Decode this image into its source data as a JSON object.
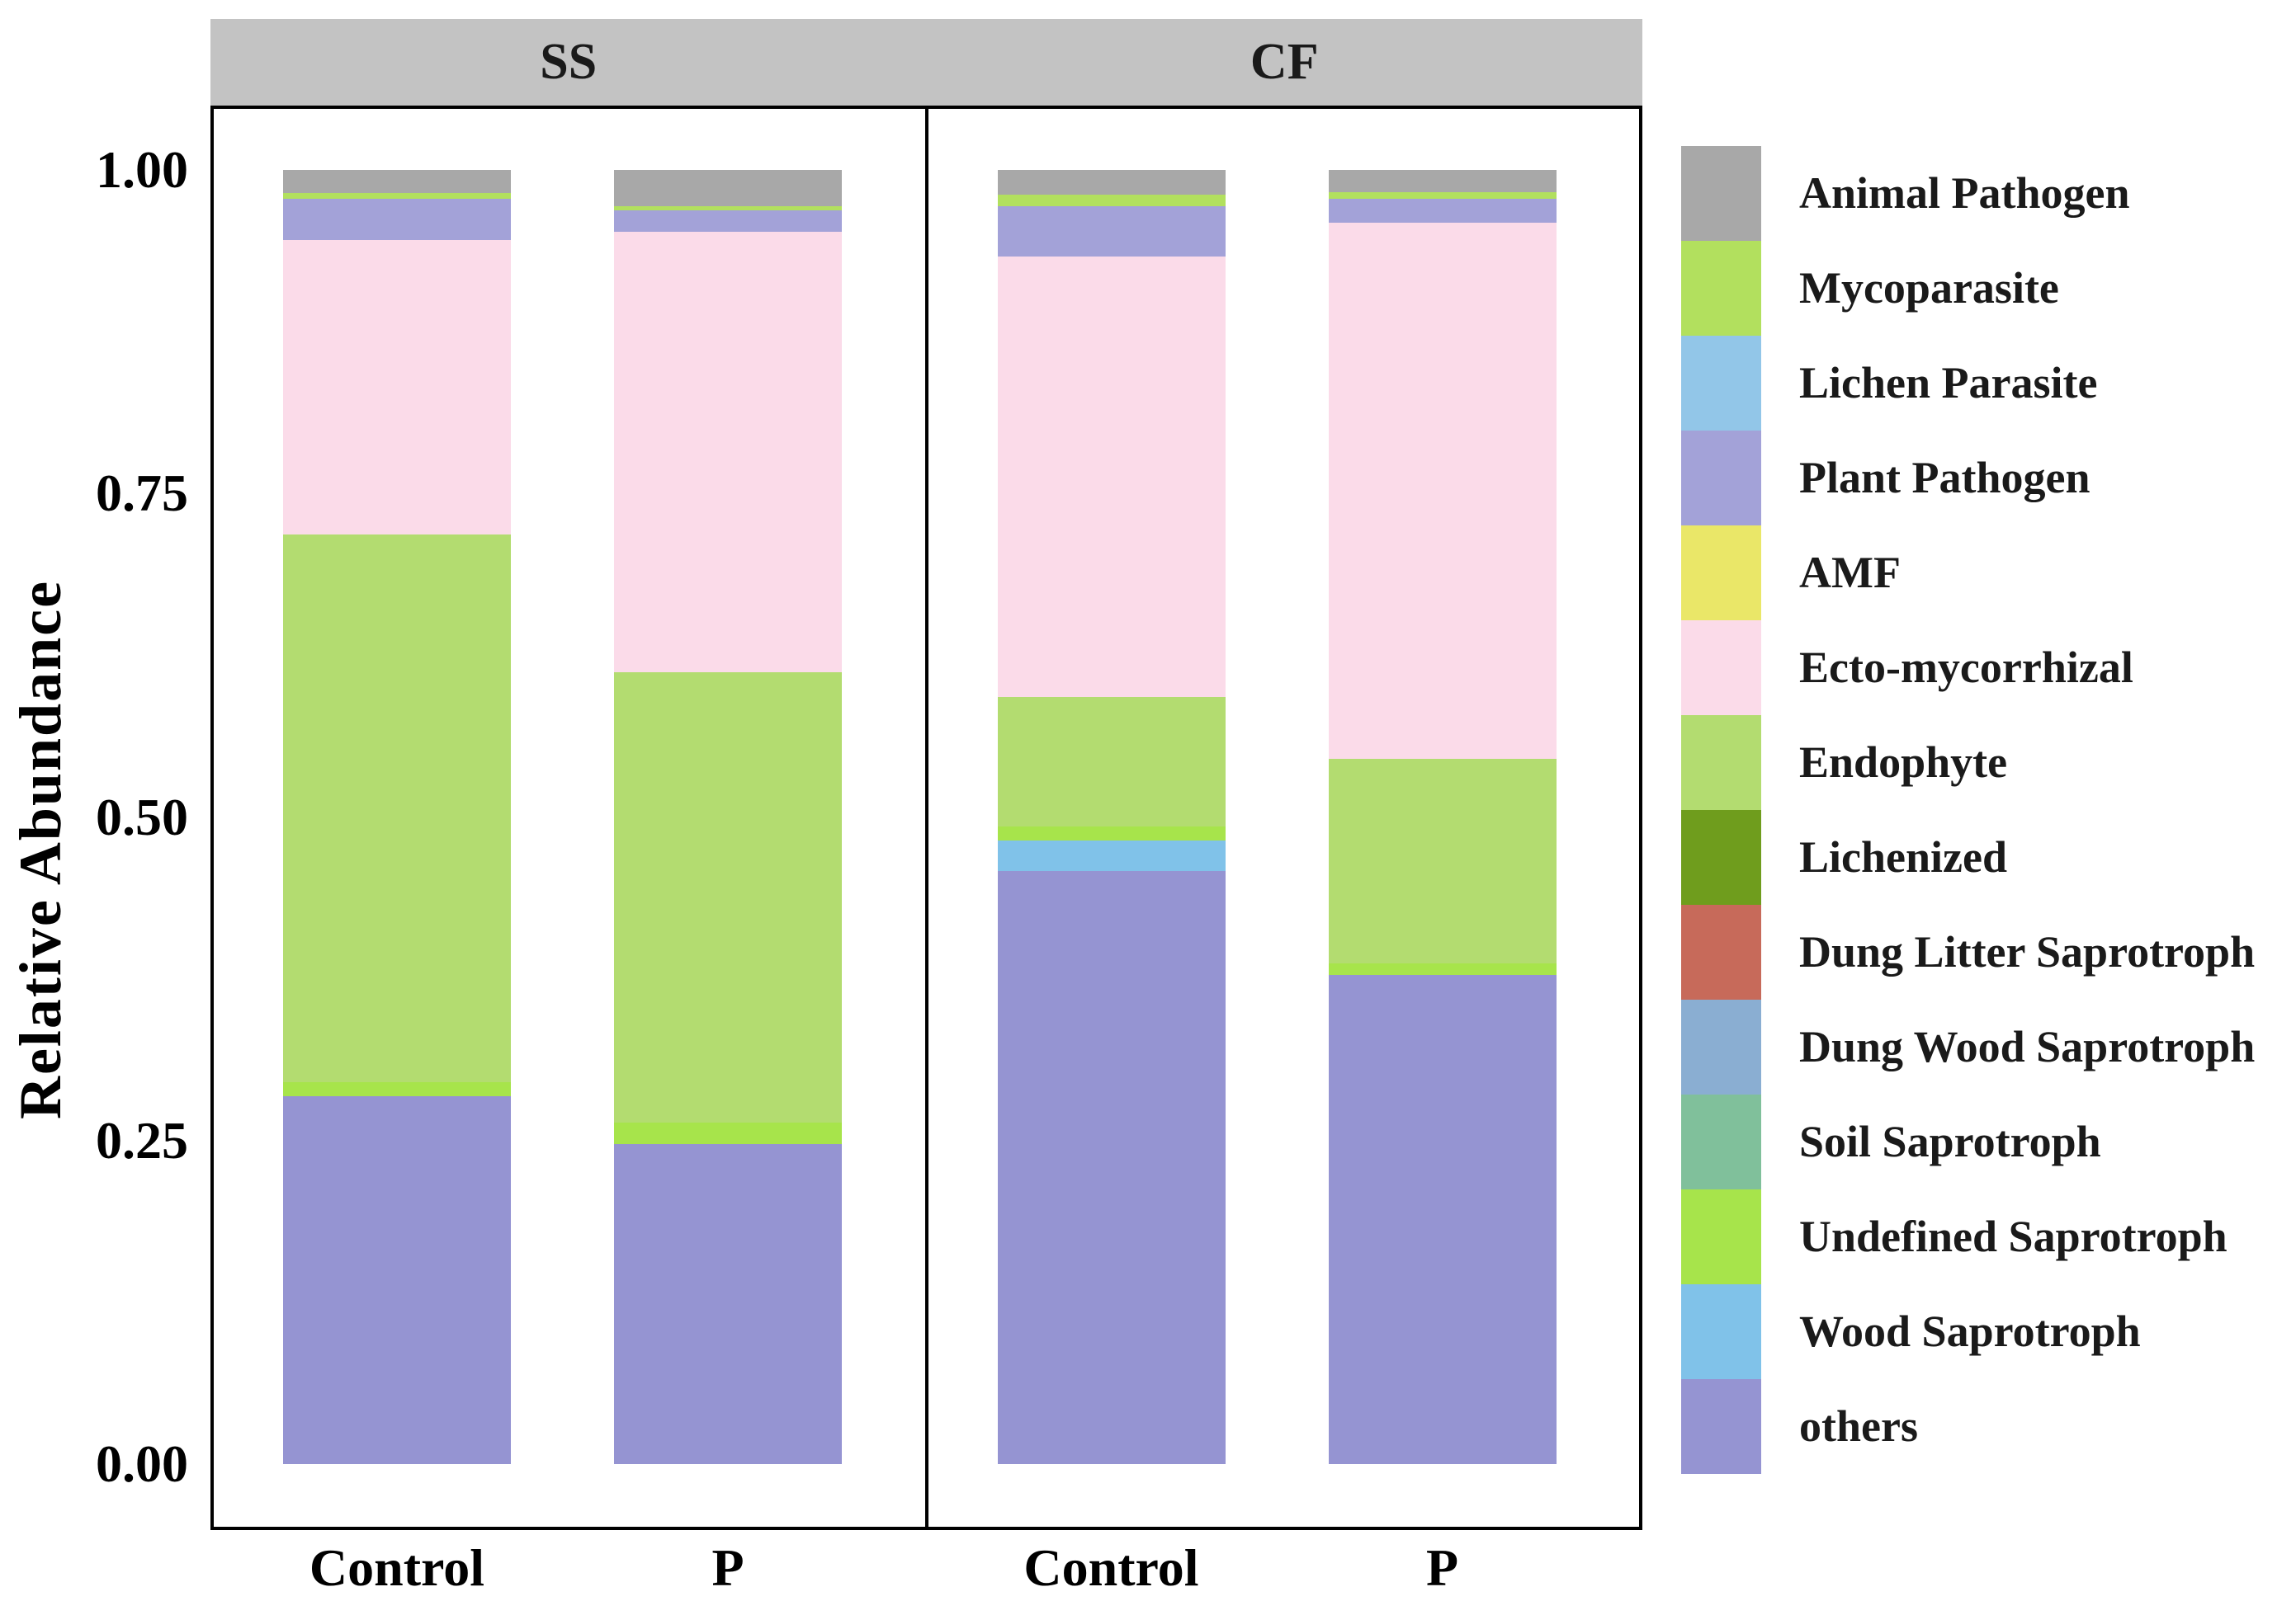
{
  "figure": {
    "background": "#ffffff",
    "facet_strip_color": "#c3c3c3",
    "panel_border_color": "#000000"
  },
  "chart_data": {
    "type": "bar",
    "subtype": "stacked-normalized",
    "title": "",
    "xlabel": "",
    "ylabel": "Relative Abundance",
    "ylim": [
      0,
      1
    ],
    "grid": false,
    "legend_position": "right",
    "yticks": [
      {
        "value": 1.0,
        "label": "1.00"
      },
      {
        "value": 0.75,
        "label": "0.75"
      },
      {
        "value": 0.5,
        "label": "0.50"
      },
      {
        "value": 0.25,
        "label": "0.25"
      },
      {
        "value": 0.0,
        "label": "0.00"
      }
    ],
    "facets": [
      {
        "label": "SS",
        "categories": [
          "Control",
          "P"
        ]
      },
      {
        "label": "CF",
        "categories": [
          "Control",
          "P"
        ]
      }
    ],
    "legend": [
      {
        "label": "Animal Pathogen",
        "color": "#a8a8a8"
      },
      {
        "label": "Mycoparasite",
        "color": "#b2e05e"
      },
      {
        "label": "Lichen Parasite",
        "color": "#92c6e8"
      },
      {
        "label": "Plant Pathogen",
        "color": "#a3a2d8"
      },
      {
        "label": "AMF",
        "color": "#eae768"
      },
      {
        "label": "Ecto-mycorrhizal",
        "color": "#fbdbe9"
      },
      {
        "label": "Endophyte",
        "color": "#b3dc70"
      },
      {
        "label": "Lichenized",
        "color": "#6f9d1d"
      },
      {
        "label": "Dung Litter Saprotroph",
        "color": "#c76a5a"
      },
      {
        "label": "Dung Wood Saprotroph",
        "color": "#8aaed2"
      },
      {
        "label": "Soil Saprotroph",
        "color": "#80c09b"
      },
      {
        "label": "Undefined Saprotroph",
        "color": "#a7e44b"
      },
      {
        "label": "Wood Saprotroph",
        "color": "#80c2e9"
      },
      {
        "label": "others",
        "color": "#9594d2"
      }
    ],
    "bars": [
      {
        "facet": "SS",
        "category": "Control",
        "values": {
          "Animal Pathogen": 0.018,
          "Mycoparasite": 0.004,
          "Plant Pathogen": 0.032,
          "Ecto-mycorrhizal": 0.228,
          "Endophyte": 0.423,
          "Undefined Saprotroph": 0.011,
          "others": 0.284
        }
      },
      {
        "facet": "SS",
        "category": "P",
        "values": {
          "Animal Pathogen": 0.028,
          "Mycoparasite": 0.003,
          "Plant Pathogen": 0.017,
          "Ecto-mycorrhizal": 0.34,
          "Endophyte": 0.348,
          "Undefined Saprotroph": 0.017,
          "others": 0.247
        }
      },
      {
        "facet": "CF",
        "category": "Control",
        "values": {
          "Animal Pathogen": 0.019,
          "Mycoparasite": 0.009,
          "Plant Pathogen": 0.039,
          "Ecto-mycorrhizal": 0.34,
          "Endophyte": 0.1,
          "Undefined Saprotroph": 0.011,
          "Wood Saprotroph": 0.024,
          "others": 0.458
        }
      },
      {
        "facet": "CF",
        "category": "P",
        "values": {
          "Animal Pathogen": 0.017,
          "Mycoparasite": 0.005,
          "Plant Pathogen": 0.019,
          "Ecto-mycorrhizal": 0.414,
          "Endophyte": 0.158,
          "Undefined Saprotroph": 0.009,
          "others": 0.378
        }
      }
    ]
  }
}
